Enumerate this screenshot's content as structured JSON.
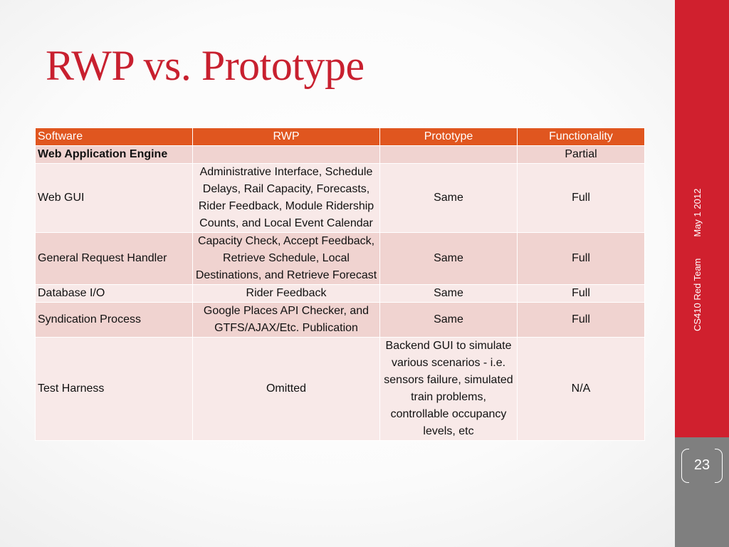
{
  "slide": {
    "title": "RWP vs. Prototype",
    "author": "CS410 Red Team",
    "date": "May 1 2012",
    "page_number": "23"
  },
  "table": {
    "headers": [
      "Software",
      "RWP",
      "Prototype",
      "Functionality"
    ],
    "rows": [
      [
        "Web Application Engine",
        "",
        "",
        "Partial"
      ],
      [
        "Web GUI",
        "Administrative Interface, Schedule Delays, Rail Capacity, Forecasts, Rider Feedback, Module Ridership Counts, and Local Event Calendar",
        "Same",
        "Full"
      ],
      [
        "General Request Handler",
        "Capacity Check, Accept Feedback, Retrieve Schedule, Local Destinations, and Retrieve Forecast",
        "Same",
        "Full"
      ],
      [
        "Database I/O",
        "Rider Feedback",
        "Same",
        "Full"
      ],
      [
        "Syndication Process",
        "Google Places API Checker, and GTFS/AJAX/Etc. Publication",
        "Same",
        "Full"
      ],
      [
        "Test Harness",
        "Omitted",
        "Backend GUI to simulate various scenarios - i.e. sensors failure, simulated train problems, controllable occupancy levels, etc",
        "N/A"
      ]
    ]
  },
  "colors": {
    "title": "#c8202f",
    "sidebar": "#d0202e",
    "sidebar_lower": "#7f7f7f",
    "header_fill": "#e0561f",
    "row_dark": "#f0d3d0",
    "row_light": "#f8e9e8"
  }
}
